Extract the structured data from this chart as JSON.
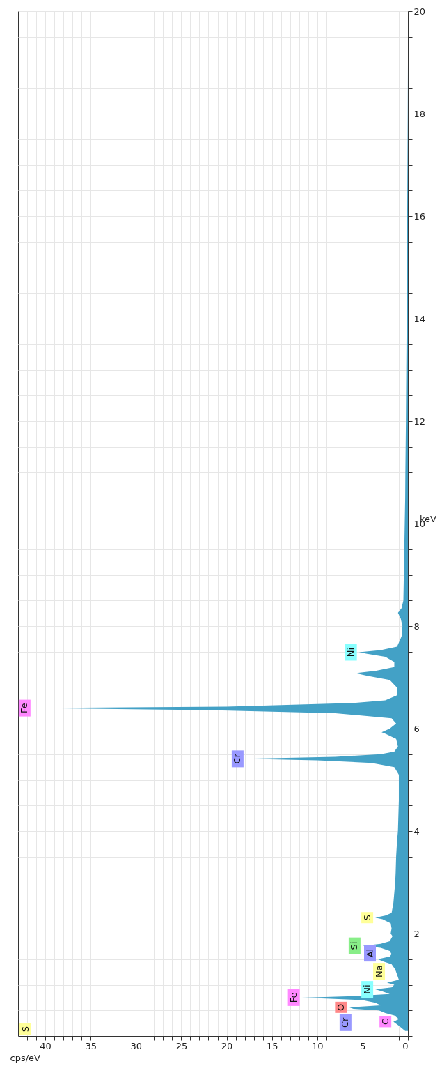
{
  "chart_data": {
    "type": "area",
    "orientation": "horizontal",
    "xlabel": "cps/eV",
    "ylabel": "keV",
    "color": "#43a1c6",
    "grid": true,
    "xlim": [
      43,
      0
    ],
    "ylim": [
      0,
      20
    ],
    "xticks": [
      0,
      {
        "value": 1,
        "label": null
      },
      {
        "value": 2,
        "label": null
      },
      {
        "value": 3,
        "label": null
      },
      {
        "value": 4,
        "label": null
      },
      5,
      {
        "value": 6,
        "label": null
      },
      {
        "value": 7,
        "label": null
      },
      {
        "value": 8,
        "label": null
      },
      {
        "value": 9,
        "label": null
      },
      10,
      {
        "value": 11,
        "label": null
      },
      {
        "value": 12,
        "label": null
      },
      {
        "value": 13,
        "label": null
      },
      {
        "value": 14,
        "label": null
      },
      15,
      {
        "value": 16,
        "label": null
      },
      {
        "value": 17,
        "label": null
      },
      {
        "value": 18,
        "label": null
      },
      {
        "value": 19,
        "label": null
      },
      20,
      {
        "value": 21,
        "label": null
      },
      {
        "value": 22,
        "label": null
      },
      {
        "value": 23,
        "label": null
      },
      {
        "value": 24,
        "label": null
      },
      25,
      {
        "value": 26,
        "label": null
      },
      {
        "value": 27,
        "label": null
      },
      {
        "value": 28,
        "label": null
      },
      {
        "value": 29,
        "label": null
      },
      30,
      {
        "value": 31,
        "label": null
      },
      {
        "value": 32,
        "label": null
      },
      {
        "value": 33,
        "label": null
      },
      {
        "value": 34,
        "label": null
      },
      35,
      {
        "value": 36,
        "label": null
      },
      {
        "value": 37,
        "label": null
      },
      {
        "value": 38,
        "label": null
      },
      {
        "value": 39,
        "label": null
      },
      40,
      {
        "value": 41,
        "label": null
      },
      {
        "value": 42,
        "label": null
      }
    ],
    "yticks": [
      {
        "value": 0,
        "label": null
      },
      {
        "value": 0.5,
        "label": null
      },
      {
        "value": 1,
        "label": null
      },
      {
        "value": 1.5,
        "label": null
      },
      2,
      {
        "value": 2.5,
        "label": null
      },
      {
        "value": 3,
        "label": null
      },
      {
        "value": 3.5,
        "label": null
      },
      4,
      {
        "value": 4.5,
        "label": null
      },
      {
        "value": 5,
        "label": null
      },
      {
        "value": 5.5,
        "label": null
      },
      6,
      {
        "value": 6.5,
        "label": null
      },
      {
        "value": 7,
        "label": null
      },
      {
        "value": 7.5,
        "label": null
      },
      8,
      {
        "value": 8.5,
        "label": null
      },
      {
        "value": 9,
        "label": null
      },
      {
        "value": 9.5,
        "label": null
      },
      10,
      {
        "value": 10.5,
        "label": null
      },
      {
        "value": 11,
        "label": null
      },
      {
        "value": 11.5,
        "label": null
      },
      12,
      {
        "value": 12.5,
        "label": null
      },
      {
        "value": 13,
        "label": null
      },
      {
        "value": 13.5,
        "label": null
      },
      14,
      {
        "value": 14.5,
        "label": null
      },
      {
        "value": 15,
        "label": null
      },
      {
        "value": 15.5,
        "label": null
      },
      16,
      {
        "value": 16.5,
        "label": null
      },
      {
        "value": 17,
        "label": null
      },
      {
        "value": 17.5,
        "label": null
      },
      18,
      {
        "value": 18.5,
        "label": null
      },
      {
        "value": 19,
        "label": null
      },
      {
        "value": 19.5,
        "label": null
      },
      20
    ],
    "x": [
      0.1,
      0.2,
      0.28,
      0.33,
      0.4,
      0.45,
      0.5,
      0.53,
      0.56,
      0.6,
      0.65,
      0.7,
      0.73,
      0.75,
      0.78,
      0.82,
      0.87,
      0.91,
      0.95,
      1.0,
      1.04,
      1.1,
      1.2,
      1.3,
      1.4,
      1.46,
      1.5,
      1.55,
      1.6,
      1.66,
      1.72,
      1.76,
      1.8,
      1.85,
      1.95,
      2.0,
      2.1,
      2.2,
      2.28,
      2.31,
      2.35,
      2.4,
      2.6,
      2.8,
      3.0,
      3.2,
      3.5,
      3.8,
      4.0,
      4.3,
      4.6,
      4.9,
      5.1,
      5.25,
      5.33,
      5.38,
      5.41,
      5.45,
      5.5,
      5.55,
      5.65,
      5.8,
      5.9,
      5.93,
      6.0,
      6.1,
      6.2,
      6.3,
      6.36,
      6.4,
      6.43,
      6.5,
      6.55,
      6.65,
      6.8,
      6.95,
      7.03,
      7.08,
      7.13,
      7.2,
      7.3,
      7.4,
      7.46,
      7.49,
      7.53,
      7.6,
      7.8,
      8.0,
      8.15,
      8.26,
      8.35,
      8.5,
      9.0,
      9.5,
      10,
      10.5,
      11,
      12,
      13,
      14,
      15,
      16,
      17,
      18,
      19,
      20
    ],
    "values": [
      0.3,
      1.0,
      1.6,
      1.0,
      1.5,
      2.5,
      3.2,
      6.0,
      6.5,
      3.0,
      3.6,
      5.0,
      9,
      11.7,
      6,
      2.0,
      2.8,
      3.6,
      1.8,
      1.5,
      2.3,
      1.0,
      1.2,
      1.4,
      1.8,
      2.8,
      3.3,
      2.0,
      1.8,
      2.0,
      3.0,
      5.0,
      3.0,
      2.0,
      1.7,
      1.9,
      1.8,
      1.9,
      2.8,
      3.6,
      2.5,
      1.8,
      1.6,
      1.5,
      1.4,
      1.35,
      1.3,
      1.2,
      1.1,
      1.05,
      1.0,
      1.0,
      1.0,
      1.5,
      4,
      10,
      17.9,
      8,
      3,
      1.5,
      1.1,
      1.3,
      2.5,
      2.9,
      2.0,
      1.3,
      1.8,
      8,
      22,
      41.4,
      20,
      6,
      2.5,
      1.2,
      1.2,
      2.0,
      4.5,
      5.8,
      3.5,
      1.5,
      1.5,
      2.5,
      4.5,
      5.4,
      3,
      1.2,
      0.7,
      0.6,
      0.8,
      1.1,
      0.7,
      0.5,
      0.45,
      0.4,
      0.35,
      0.3,
      0.28,
      0.22,
      0.18,
      0.14,
      0.1,
      0.08,
      0.05,
      0.02,
      0,
      0
    ],
    "annotations": [
      "S",
      {
        "text": "C",
        "x": 1.6,
        "y": 0.28
      },
      {
        "text": "O",
        "x": 6.5,
        "y": 0.56
      },
      {
        "text": "Cr",
        "x": 6.0,
        "y": 0.53
      },
      {
        "text": "Fe",
        "x": 11.7,
        "y": 0.75
      },
      {
        "text": "Ni",
        "x": 3.6,
        "y": 0.91
      },
      {
        "text": "Na",
        "x": 2.3,
        "y": 1.04
      },
      {
        "text": "Al",
        "x": 3.3,
        "y": 1.5
      },
      {
        "text": "Si",
        "x": 5.0,
        "y": 1.76
      },
      {
        "text": "S",
        "x": 3.6,
        "y": 2.31
      },
      {
        "text": "Cr",
        "x": 17.9,
        "y": 5.41
      },
      {
        "text": "Fe",
        "x": 41.4,
        "y": 6.4
      },
      {
        "text": "Ni",
        "x": 5.4,
        "y": 7.49
      }
    ]
  }
}
